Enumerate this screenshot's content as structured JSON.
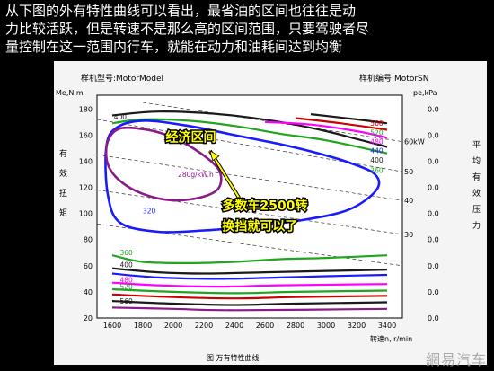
{
  "caption": {
    "line1": "从下图的外有特性曲线可以看出，最省油的区间也往往是动",
    "line2": "力比较活跃，但是转速不是那么高的区间范围，只要驾驶者尽",
    "line3": "量控制在这一范围内行车，就能在动力和油耗间达到均衡"
  },
  "watermark": "網易汽车",
  "chart_data": {
    "type": "line",
    "header_left": "样机型号:MotorModel",
    "header_right": "样机编号:MotorSN",
    "y_left_unit": "Me,N.m",
    "y_left_title": "有效扭矩",
    "y_right_unit": "pe,kPa",
    "y_right_title": "平均有效压力",
    "x_label": "转速n, r/min",
    "figure_title": "图    万有特性曲线",
    "x_ticks": [
      1600,
      1800,
      2000,
      2200,
      2400,
      2600,
      2800,
      3000,
      3200,
      3400
    ],
    "y_ticks": [
      20,
      40,
      60,
      80,
      100,
      120,
      140,
      160,
      180
    ],
    "right_ticks": [
      "0.0",
      "0.0",
      "0.0",
      "0.0",
      "0.0",
      "0.0",
      "0.0",
      "0.0",
      "0.0"
    ],
    "xlim": [
      1500,
      3500
    ],
    "ylim": [
      20,
      185
    ],
    "power_lines": [
      {
        "label": "60kW",
        "points": [
          [
            1800,
            185
          ],
          [
            3500,
            155
          ]
        ]
      },
      {
        "label": "50",
        "points": [
          [
            1500,
            172
          ],
          [
            3500,
            132
          ]
        ]
      },
      {
        "label": "40",
        "points": [
          [
            1500,
            145
          ],
          [
            3500,
            110
          ]
        ]
      },
      {
        "label": "30",
        "points": [
          [
            1500,
            118
          ],
          [
            3500,
            84
          ]
        ]
      },
      {
        "label": "",
        "points": [
          [
            1500,
            92
          ],
          [
            3500,
            60
          ]
        ]
      }
    ],
    "fuel_curves": [
      {
        "label": "400",
        "color": "#1a1a1a",
        "points": [
          [
            1600,
            175
          ],
          [
            1900,
            178
          ],
          [
            2300,
            176
          ],
          [
            2700,
            170
          ],
          [
            3000,
            163
          ],
          [
            3200,
            157
          ],
          [
            3400,
            151
          ]
        ]
      },
      {
        "label": "360",
        "color": "#1fa51f",
        "points": [
          [
            1600,
            169
          ],
          [
            1800,
            172
          ],
          [
            2100,
            171
          ],
          [
            2400,
            167
          ],
          [
            2700,
            161
          ],
          [
            3000,
            156
          ],
          [
            3400,
            146
          ]
        ]
      },
      {
        "label": "",
        "color": "#ff00ff",
        "points": [
          [
            2600,
            170
          ],
          [
            2900,
            168
          ],
          [
            3200,
            163
          ],
          [
            3400,
            158
          ]
        ]
      },
      {
        "label": "",
        "color": "#cc0000",
        "points": [
          [
            2800,
            173
          ],
          [
            3100,
            169
          ],
          [
            3400,
            164
          ]
        ]
      },
      {
        "label": "",
        "color": "#1a1a1a",
        "points": [
          [
            2900,
            176
          ],
          [
            3200,
            172
          ],
          [
            3400,
            169
          ]
        ]
      },
      {
        "label": "320",
        "color": "#1a1aff",
        "closed": true,
        "points": [
          [
            1560,
            150
          ],
          [
            1620,
            165
          ],
          [
            1800,
            171
          ],
          [
            2100,
            167
          ],
          [
            2400,
            160
          ],
          [
            2700,
            153
          ],
          [
            2950,
            146
          ],
          [
            3150,
            139
          ],
          [
            3320,
            130
          ],
          [
            3330,
            118
          ],
          [
            3150,
            103
          ],
          [
            2850,
            95
          ],
          [
            2500,
            90
          ],
          [
            2200,
            87
          ],
          [
            1900,
            86
          ],
          [
            1650,
            93
          ],
          [
            1570,
            115
          ]
        ]
      },
      {
        "label": "280g/kW.h",
        "color": "#8a1a8a",
        "closed": true,
        "points": [
          [
            1570,
            155
          ],
          [
            1650,
            165
          ],
          [
            1830,
            164
          ],
          [
            2000,
            158
          ],
          [
            2180,
            146
          ],
          [
            2300,
            133
          ],
          [
            2300,
            120
          ],
          [
            2200,
            113
          ],
          [
            2000,
            110
          ],
          [
            1800,
            115
          ],
          [
            1650,
            125
          ],
          [
            1570,
            138
          ]
        ]
      },
      {
        "label": "360",
        "color": "#1fa51f",
        "points": [
          [
            1600,
            68
          ],
          [
            1800,
            63
          ],
          [
            2100,
            62
          ],
          [
            2400,
            63
          ],
          [
            2700,
            65
          ],
          [
            3000,
            66
          ],
          [
            3400,
            68
          ]
        ]
      },
      {
        "label": "400",
        "color": "#1a1a1a",
        "points": [
          [
            1600,
            58
          ],
          [
            1900,
            55
          ],
          [
            2200,
            54
          ],
          [
            2600,
            55
          ],
          [
            3000,
            56
          ],
          [
            3400,
            57
          ]
        ]
      },
      {
        "label": "",
        "color": "#1a1aff",
        "points": [
          [
            1600,
            54
          ],
          [
            1900,
            51
          ],
          [
            2300,
            50
          ],
          [
            2700,
            51
          ],
          [
            3000,
            52
          ],
          [
            3400,
            53
          ]
        ]
      },
      {
        "label": "480",
        "color": "#ff00ff",
        "points": [
          [
            1600,
            47
          ],
          [
            1900,
            45
          ],
          [
            2300,
            44
          ],
          [
            2700,
            45
          ],
          [
            3400,
            46
          ]
        ]
      },
      {
        "label": "520",
        "color": "#1fa51f",
        "points": [
          [
            1600,
            42
          ],
          [
            2000,
            40
          ],
          [
            2400,
            39
          ],
          [
            2800,
            40
          ],
          [
            3400,
            41
          ]
        ]
      },
      {
        "label": "",
        "color": "#cc0000",
        "points": [
          [
            1600,
            38
          ],
          [
            2000,
            36
          ],
          [
            2400,
            35
          ],
          [
            2800,
            36
          ],
          [
            3400,
            37
          ]
        ]
      },
      {
        "label": "560",
        "color": "#1a1a1a",
        "points": [
          [
            1600,
            33
          ],
          [
            2000,
            31
          ],
          [
            2400,
            30
          ],
          [
            2800,
            31
          ],
          [
            3400,
            32
          ]
        ]
      },
      {
        "label": "",
        "color": "#8a1a8a",
        "points": [
          [
            1600,
            28
          ],
          [
            2000,
            27
          ],
          [
            2400,
            26
          ],
          [
            3400,
            27
          ]
        ]
      }
    ],
    "right_labels": [
      {
        "text": "560",
        "color": "#cc0000",
        "x": 3290,
        "y": 167
      },
      {
        "text": "520",
        "color": "#1fa51f",
        "x": 3290,
        "y": 160
      },
      {
        "text": "480",
        "color": "#ff00ff",
        "x": 3290,
        "y": 153
      },
      {
        "text": "440",
        "color": "#1a1aff",
        "x": 3290,
        "y": 146
      },
      {
        "text": "400",
        "color": "#1a1a1a",
        "x": 3290,
        "y": 139
      },
      {
        "text": "360",
        "color": "#1fa51f",
        "x": 3290,
        "y": 131
      },
      {
        "text": "360",
        "color": "#1fa51f",
        "x": 1650,
        "y": 68
      },
      {
        "text": "400",
        "color": "#1a1a1a",
        "x": 1650,
        "y": 59
      },
      {
        "text": "480",
        "color": "#ff00ff",
        "x": 1650,
        "y": 47
      },
      {
        "text": "520",
        "color": "#1fa51f",
        "x": 1650,
        "y": 42
      },
      {
        "text": "560",
        "color": "#1a1a1a",
        "x": 1650,
        "y": 31
      },
      {
        "text": "400",
        "color": "#1a1a1a",
        "x": 1610,
        "y": 172
      },
      {
        "text": "320",
        "color": "#1a1aff",
        "x": 1800,
        "y": 100
      },
      {
        "text": "280g/kW.h",
        "color": "#8a1a8a",
        "x": 2030,
        "y": 128
      }
    ],
    "annotations": [
      {
        "text": "经济区间",
        "x": 1950,
        "y": 155
      },
      {
        "text": "多数车2500转",
        "x": 2320,
        "y": 103
      },
      {
        "text": "换挡就可以了",
        "x": 2320,
        "y": 87
      }
    ]
  }
}
